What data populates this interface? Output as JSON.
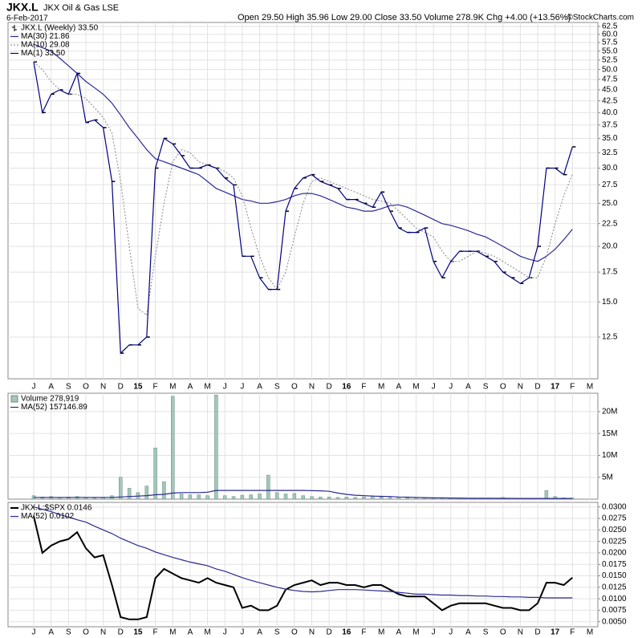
{
  "header": {
    "symbol": "JKX.L",
    "name": "JKX Oil & Gas LSE",
    "date": "6-Feb-2017",
    "quote": "Open 29.50 High 35.96 Low 29.00 Close 33.50 Volume 278.9K Chg +4.00 (+13.56%)",
    "credit": "©StockCharts.com"
  },
  "chart_data": [
    {
      "type": "line",
      "log_scale": true,
      "grid": true,
      "legend": "upper left",
      "categories": [
        "J",
        null,
        "A",
        null,
        "S",
        null,
        "O",
        null,
        "N",
        null,
        "D",
        null,
        "15",
        null,
        "F",
        null,
        "M",
        null,
        "A",
        null,
        "M",
        null,
        "J",
        null,
        "J",
        null,
        "A",
        null,
        "S",
        null,
        "O",
        null,
        "N",
        null,
        "D",
        null,
        "16",
        null,
        "F",
        null,
        "M",
        null,
        "A",
        null,
        "M",
        null,
        "J",
        null,
        "J",
        null,
        "A",
        null,
        "S",
        null,
        "O",
        null,
        "N",
        null,
        "D",
        null,
        "17",
        null,
        "F",
        null,
        "M",
        null
      ],
      "ylim": [
        10.07,
        63.8
      ],
      "yticks": [
        12.5,
        {
          "value": 15,
          "label": "15.0"
        },
        17.5,
        {
          "value": 20,
          "label": "20.0"
        },
        22.5,
        {
          "value": 25,
          "label": "25.0"
        },
        27.5,
        {
          "value": 30,
          "label": "30.0"
        },
        32.5,
        {
          "value": 35,
          "label": "35.0"
        },
        37.5,
        {
          "value": 40,
          "label": "40.0"
        },
        42.5,
        {
          "value": 45,
          "label": "45.0"
        },
        47.5,
        {
          "value": 50,
          "label": "50.0"
        },
        52.5,
        {
          "value": 55,
          "label": "55.0"
        },
        57.5,
        {
          "value": 60,
          "label": "60.0"
        },
        62.5
      ],
      "series": [
        {
          "name": "JKX.L (Weekly) 33.50",
          "style": "ticks",
          "color": "#000000",
          "values": [
            52,
            40,
            44,
            45,
            44,
            49,
            38,
            38.5,
            37,
            28,
            11.5,
            12,
            12,
            12.5,
            30,
            35,
            34,
            32,
            30,
            30,
            30.5,
            30,
            28.5,
            27.5,
            19,
            19,
            17,
            16,
            16,
            24,
            27,
            28.5,
            29,
            28,
            27.5,
            27,
            25.5,
            25.5,
            25,
            24.5,
            26.5,
            24,
            22,
            21.5,
            21.5,
            22,
            18.5,
            17,
            18.5,
            19.5,
            19.5,
            19.5,
            19,
            18.5,
            17.5,
            17,
            16.5,
            17,
            20,
            30,
            30,
            29,
            33.5,
            null,
            null,
            null
          ]
        },
        {
          "name": "MA(30) 21.86",
          "style": "line",
          "color": "#2a2a96",
          "values": [
            57,
            56,
            55,
            53,
            51,
            49,
            47,
            45.5,
            44,
            42,
            39.5,
            37,
            35,
            33,
            31.5,
            31,
            30.5,
            30,
            29.5,
            29,
            28,
            27,
            26.5,
            26,
            25.5,
            25.3,
            25,
            25,
            25.2,
            25.5,
            26,
            26.3,
            26.3,
            26,
            25.5,
            25,
            24.5,
            24.3,
            24,
            24,
            24.3,
            24.7,
            24.8,
            24.5,
            24,
            23.5,
            23,
            22.5,
            22.3,
            22,
            21.7,
            21.3,
            21,
            20.5,
            20,
            19.5,
            19,
            18.7,
            18.5,
            19,
            19.7,
            20.7,
            21.86,
            null,
            null,
            null
          ]
        },
        {
          "name": "MA(10) 29.08",
          "style": "dotted",
          "color": "#999999",
          "values": [
            52,
            50,
            47,
            45,
            44,
            44,
            43,
            41,
            39,
            36,
            28,
            20,
            14.5,
            14,
            19,
            25,
            31,
            33,
            32.5,
            31,
            30.5,
            30,
            29.5,
            28.5,
            26,
            22,
            19,
            17,
            16,
            17.5,
            21,
            25,
            28,
            28.5,
            28,
            27.5,
            27,
            26.5,
            26,
            25.5,
            25.3,
            25,
            24,
            23,
            22,
            21.5,
            21,
            19.5,
            18.5,
            18.5,
            19,
            19.5,
            19.3,
            19,
            18.5,
            18,
            17.5,
            17,
            17,
            19,
            22.5,
            26,
            29.08,
            null,
            null,
            null
          ]
        },
        {
          "name": "MA(1) 33.50",
          "style": "line",
          "color": "#000080",
          "values": [
            52,
            40,
            44,
            45,
            44,
            49,
            38,
            38.5,
            37,
            28,
            11.5,
            12,
            12,
            12.5,
            30,
            35,
            34,
            32,
            30,
            30,
            30.5,
            30,
            28.5,
            27.5,
            19,
            19,
            17,
            16,
            16,
            24,
            27,
            28.5,
            29,
            28,
            27.5,
            27,
            25.5,
            25.5,
            25,
            24.5,
            26.5,
            24,
            22,
            21.5,
            21.5,
            22,
            18.5,
            17,
            18.5,
            19.5,
            19.5,
            19.5,
            19,
            18.5,
            17.5,
            17,
            16.5,
            17,
            20,
            30,
            30,
            29,
            33.5,
            null,
            null,
            null
          ]
        }
      ]
    },
    {
      "type": "bar",
      "grid": true,
      "legend": "upper left",
      "ylim": [
        0,
        24200000
      ],
      "yticks": [
        {
          "value": 5000000,
          "label": "5M"
        },
        {
          "value": 10000000,
          "label": "10M"
        },
        {
          "value": 15000000,
          "label": "15M"
        },
        {
          "value": 20000000,
          "label": "20M"
        }
      ],
      "series": [
        {
          "name": "Volume 278,919",
          "style": "bar",
          "color": "#a3c6ba",
          "values": [
            800000,
            500000,
            600000,
            400000,
            500000,
            600000,
            400000,
            300000,
            400000,
            800000,
            5000000,
            2500000,
            1500000,
            3000000,
            11700000,
            4000000,
            23500000,
            1200000,
            1000000,
            1000000,
            800000,
            23800000,
            800000,
            600000,
            900000,
            1000000,
            1200000,
            5500000,
            1500000,
            1200000,
            1300000,
            800000,
            600000,
            500000,
            500000,
            400000,
            500000,
            400000,
            500000,
            800000,
            500000,
            400000,
            500000,
            300000,
            300000,
            300000,
            200000,
            200000,
            200000,
            200000,
            200000,
            200000,
            100000,
            200000,
            400000,
            200000,
            100000,
            100000,
            200000,
            2000000,
            600000,
            300000,
            278919,
            null,
            null,
            null
          ]
        },
        {
          "name": "MA(52) 157146.89",
          "style": "line",
          "color": "#2a2a96",
          "values": [
            400000,
            400000,
            400000,
            400000,
            400000,
            400000,
            400000,
            400000,
            400000,
            400000,
            500000,
            600000,
            700000,
            800000,
            1000000,
            1100000,
            1400000,
            1500000,
            1500000,
            1500000,
            1600000,
            2000000,
            2000000,
            2000000,
            2000000,
            2000000,
            2000000,
            2000000,
            2000000,
            2000000,
            2000000,
            2000000,
            1950000,
            1900000,
            1800000,
            1400000,
            1100000,
            900000,
            800000,
            700000,
            650000,
            600000,
            500000,
            450000,
            400000,
            350000,
            300000,
            300000,
            250000,
            250000,
            200000,
            200000,
            200000,
            200000,
            180000,
            180000,
            170000,
            170000,
            170000,
            170000,
            165000,
            160000,
            157146.89,
            null,
            null,
            null
          ]
        }
      ]
    },
    {
      "type": "line",
      "grid": true,
      "legend": "upper left",
      "ylim": [
        0.0039,
        0.031
      ],
      "yticks": [
        {
          "value": 0.005,
          "label": "0.0050"
        },
        {
          "value": 0.0075,
          "label": "0.0075"
        },
        {
          "value": 0.01,
          "label": "0.0100"
        },
        {
          "value": 0.0125,
          "label": "0.0125"
        },
        {
          "value": 0.015,
          "label": "0.0150"
        },
        {
          "value": 0.0175,
          "label": "0.0175"
        },
        {
          "value": 0.02,
          "label": "0.0200"
        },
        {
          "value": 0.0225,
          "label": "0.0225"
        },
        {
          "value": 0.025,
          "label": "0.0250"
        },
        {
          "value": 0.0275,
          "label": "0.0275"
        },
        {
          "value": 0.03,
          "label": "0.0300"
        }
      ],
      "series": [
        {
          "name": "JKX.L:$SPX 0.0146",
          "style": "thick",
          "color": "#000000",
          "values": [
            0.028,
            0.02,
            0.0216,
            0.0225,
            0.023,
            0.0245,
            0.021,
            0.019,
            0.0195,
            0.013,
            0.006,
            0.0055,
            0.0055,
            0.006,
            0.0145,
            0.0165,
            0.0155,
            0.0145,
            0.014,
            0.0135,
            0.0145,
            0.0135,
            0.013,
            0.0125,
            0.008,
            0.0085,
            0.0075,
            0.0075,
            0.0085,
            0.012,
            0.013,
            0.0135,
            0.014,
            0.013,
            0.0135,
            0.0135,
            0.013,
            0.013,
            0.0125,
            0.013,
            0.013,
            0.012,
            0.011,
            0.0105,
            0.0105,
            0.0105,
            0.009,
            0.0075,
            0.0085,
            0.009,
            0.009,
            0.009,
            0.009,
            0.0085,
            0.008,
            0.008,
            0.0075,
            0.0075,
            0.009,
            0.0135,
            0.0135,
            0.013,
            0.0146,
            null,
            null,
            null
          ]
        },
        {
          "name": "MA(52) 0.0102",
          "style": "line",
          "color": "#2a2a96",
          "values": [
            0.03,
            0.0295,
            0.029,
            0.0283,
            0.0278,
            0.0272,
            0.0267,
            0.0258,
            0.025,
            0.0242,
            0.0232,
            0.0224,
            0.0216,
            0.021,
            0.0202,
            0.0196,
            0.019,
            0.0185,
            0.018,
            0.0176,
            0.0172,
            0.0165,
            0.016,
            0.0153,
            0.0146,
            0.014,
            0.0135,
            0.013,
            0.0125,
            0.0121,
            0.0118,
            0.0116,
            0.0115,
            0.0116,
            0.0118,
            0.012,
            0.012,
            0.012,
            0.0119,
            0.0118,
            0.0117,
            0.0116,
            0.0114,
            0.0112,
            0.011,
            0.011,
            0.0109,
            0.0108,
            0.0108,
            0.0107,
            0.0107,
            0.0106,
            0.0106,
            0.0105,
            0.0105,
            0.0104,
            0.0104,
            0.0103,
            0.0103,
            0.0102,
            0.0102,
            0.0102,
            0.0102,
            null,
            null,
            null
          ]
        }
      ]
    }
  ]
}
